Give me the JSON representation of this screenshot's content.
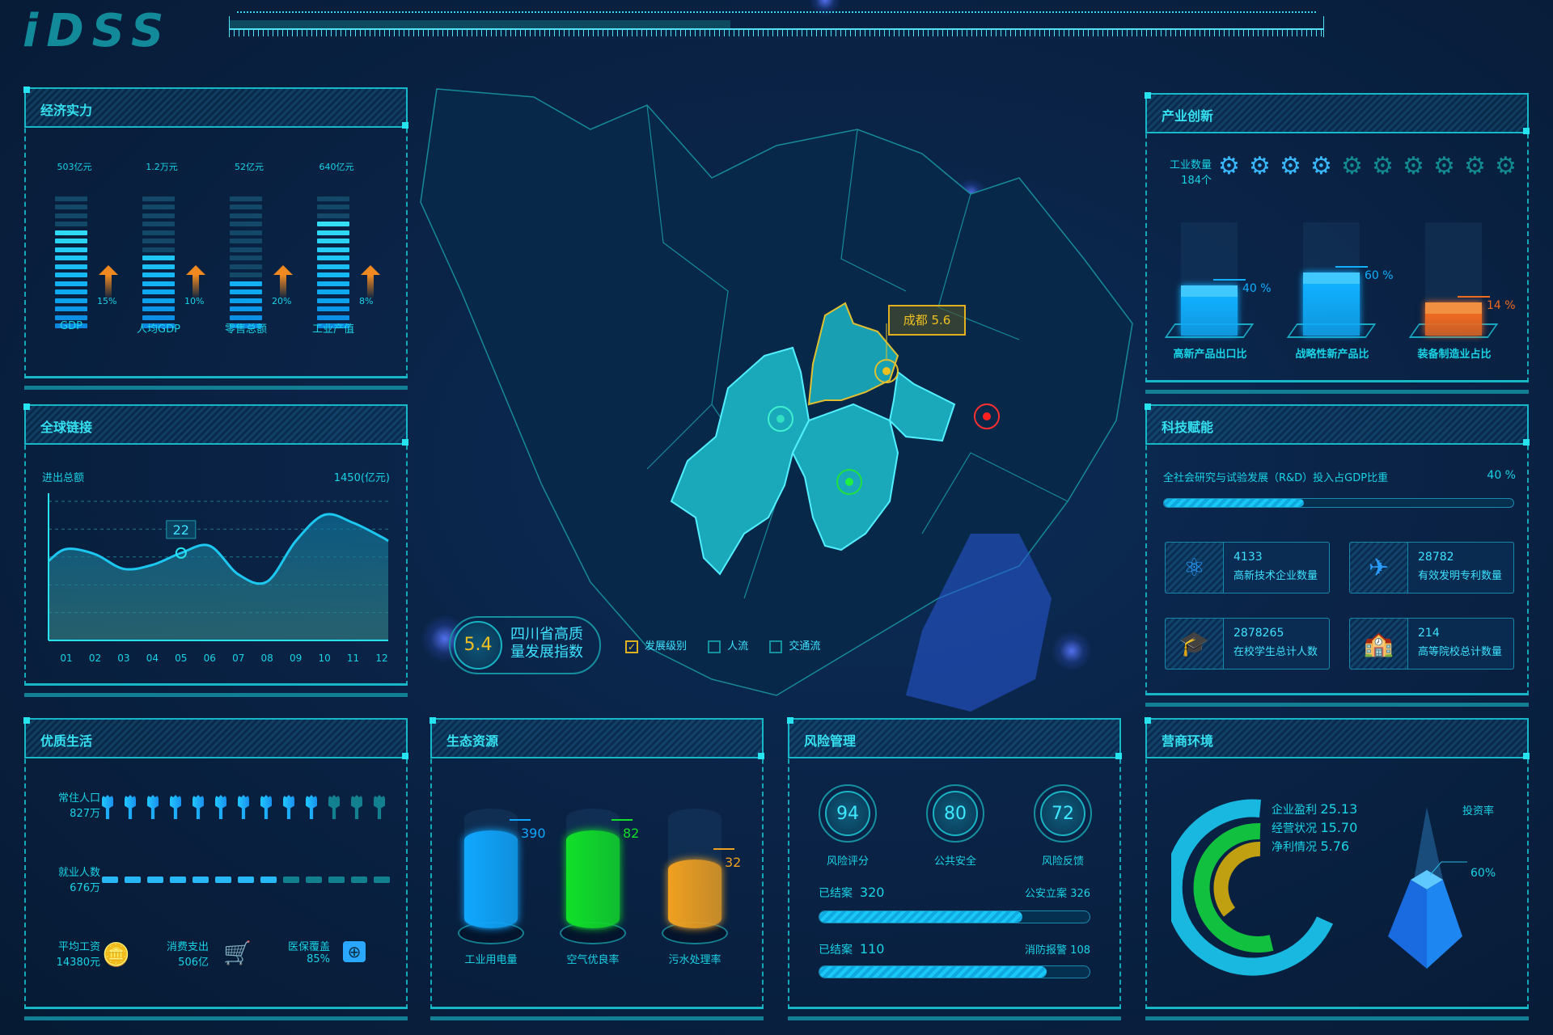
{
  "colors": {
    "accent": "#19d3e6",
    "bright": "#3de2ff",
    "orange": "#f08a20",
    "gold": "#f0c020",
    "green": "#18e030",
    "red": "#ff2020"
  },
  "logo": "iDSS",
  "economy": {
    "title": "经济实力",
    "items": [
      {
        "value": "503亿元",
        "label": "GDP",
        "growth": "15%",
        "fill": 0.75
      },
      {
        "value": "1.2万元",
        "label": "人均GDP",
        "growth": "10%",
        "fill": 0.56
      },
      {
        "value": "52亿元",
        "label": "零售总额",
        "growth": "20%",
        "fill": 0.38
      },
      {
        "value": "640亿元",
        "label": "工业产值",
        "growth": "8%",
        "fill": 0.81
      }
    ]
  },
  "global": {
    "title": "全球链接",
    "label": "进出总额",
    "total": "1450(亿元)",
    "marker": {
      "month": "05",
      "value": "22"
    }
  },
  "chart_data": {
    "type": "area",
    "categories": [
      "01",
      "02",
      "03",
      "04",
      "05",
      "06",
      "07",
      "08",
      "09",
      "10",
      "11",
      "12"
    ],
    "values": [
      23,
      21.7,
      18,
      19,
      22,
      23.8,
      16.6,
      14.8,
      25,
      31.6,
      29.6,
      26
    ],
    "ylim": [
      0,
      35
    ],
    "grid": true
  },
  "life": {
    "title": "优质生活",
    "population": {
      "label": "常住人口",
      "value": "827万",
      "lit": 10,
      "total": 13
    },
    "employment": {
      "label": "就业人数",
      "value": "676万",
      "lit": 8,
      "total": 13
    },
    "stats": [
      {
        "label": "平均工资",
        "value": "14380元",
        "icon": "coins-icon"
      },
      {
        "label": "消费支出",
        "value": "506亿",
        "icon": "cart-icon"
      },
      {
        "label": "医保覆盖",
        "value": "85%",
        "icon": "medkit-icon"
      }
    ]
  },
  "eco": {
    "title": "生态资源",
    "items": [
      {
        "label": "工业用电量",
        "value": "390",
        "color": "#10a8ff",
        "fill": 0.78
      },
      {
        "label": "空气优良率",
        "value": "82",
        "color": "#10e028",
        "fill": 0.78
      },
      {
        "label": "污水处理率",
        "value": "32",
        "color": "#f0a020",
        "fill": 0.5
      }
    ]
  },
  "risk": {
    "title": "风险管理",
    "scores": [
      {
        "value": "94",
        "label": "风险评分"
      },
      {
        "value": "80",
        "label": "公共安全"
      },
      {
        "value": "72",
        "label": "风险反馈"
      }
    ],
    "bars": [
      {
        "left": "已结案",
        "left_value": "320",
        "right": "公安立案",
        "right_value": "326",
        "fill": 0.75
      },
      {
        "left": "已结案",
        "left_value": "110",
        "right": "消防报警",
        "right_value": "108",
        "fill": 0.84
      }
    ]
  },
  "business": {
    "title": "营商环境",
    "items": [
      {
        "label": "企业盈利",
        "value": "25.13"
      },
      {
        "label": "经营状况",
        "value": "15.70"
      },
      {
        "label": "净利情况",
        "value": "5.76"
      }
    ],
    "invest_label": "投资率",
    "invest_value": "60%"
  },
  "industry": {
    "title": "产业创新",
    "count_label": "工业数量",
    "count_value": "184个",
    "gears_lit": 4,
    "gears_total": 10,
    "items": [
      {
        "label": "高新产品出口比",
        "value": "40 %",
        "color": "#10b0ff",
        "fill": 0.4
      },
      {
        "label": "战略性新产品比",
        "value": "60 %",
        "color": "#10b0ff",
        "fill": 0.6
      },
      {
        "label": "装备制造业占比",
        "value": "14 %",
        "color": "#f06a20",
        "fill": 0.14
      }
    ]
  },
  "tech": {
    "title": "科技赋能",
    "rd_label": "全社会研究与试验发展（R&D）投入占GDP比重",
    "rd_value": "40 %",
    "rd_fill": 0.4,
    "cards": [
      {
        "value": "4133",
        "label": "高新技术企业数量",
        "icon": "atom-icon"
      },
      {
        "value": "28782",
        "label": "有效发明专利数量",
        "icon": "patent-icon"
      },
      {
        "value": "2878265",
        "label": "在校学生总计人数",
        "icon": "graduation-cap-icon"
      },
      {
        "value": "214",
        "label": "高等院校总计数量",
        "icon": "school-building-icon"
      }
    ]
  },
  "map": {
    "tooltip": "成都 5.6",
    "index_value": "5.4",
    "index_label": "四川省高质量发展指数",
    "filters": [
      {
        "label": "发展级别",
        "checked": true
      },
      {
        "label": "人流",
        "checked": false
      },
      {
        "label": "交通流",
        "checked": false
      }
    ]
  }
}
